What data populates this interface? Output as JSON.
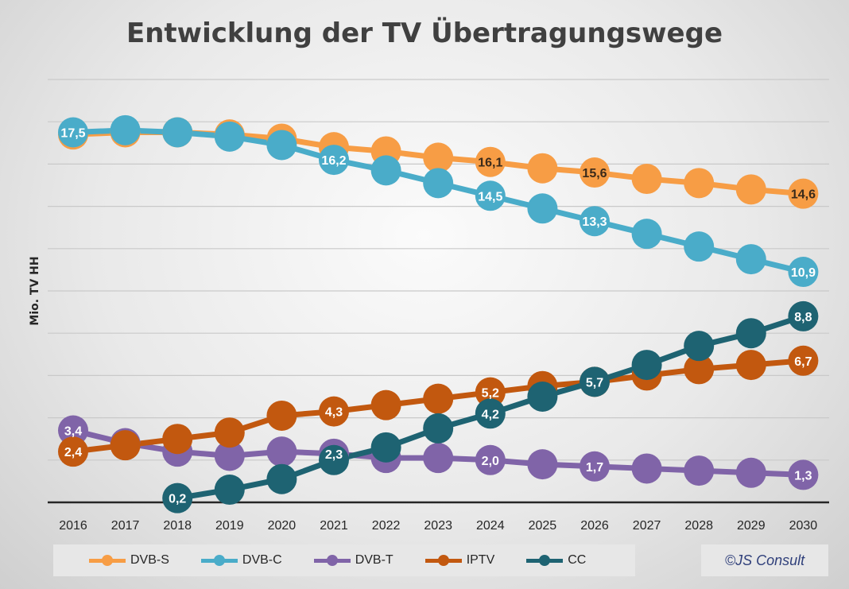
{
  "chart_data": {
    "type": "line",
    "title": "Entwicklung der TV Übertragungswege",
    "ylabel": "Mio. TV HH",
    "xlabel": "",
    "ylim": [
      0,
      20
    ],
    "grid": true,
    "legend_position": "bottom",
    "categories": [
      "2016",
      "2017",
      "2018",
      "2019",
      "2020",
      "2021",
      "2022",
      "2023",
      "2024",
      "2025",
      "2026",
      "2027",
      "2028",
      "2029",
      "2030"
    ],
    "series": [
      {
        "name": "DVB-S",
        "color": "#f79d45",
        "label_color": "#3a2a1a",
        "values": [
          17.4,
          17.5,
          17.5,
          17.4,
          17.2,
          16.8,
          16.6,
          16.3,
          16.1,
          15.8,
          15.6,
          15.3,
          15.1,
          14.8,
          14.6
        ],
        "labels": {
          "8": "16,1",
          "10": "15,6",
          "14": "14,6"
        }
      },
      {
        "name": "DVB-C",
        "color": "#4aacc9",
        "label_color": "#ffffff",
        "values": [
          17.5,
          17.6,
          17.5,
          17.3,
          16.9,
          16.2,
          15.7,
          15.1,
          14.5,
          13.9,
          13.3,
          12.7,
          12.1,
          11.5,
          10.9
        ],
        "labels": {
          "0": "17,5",
          "5": "16,2",
          "8": "14,5",
          "10": "13,3",
          "14": "10,9"
        }
      },
      {
        "name": "DVB-T",
        "color": "#8064a8",
        "label_color": "#ffffff",
        "values": [
          3.4,
          2.8,
          2.4,
          2.2,
          2.4,
          2.3,
          2.1,
          2.1,
          2.0,
          1.8,
          1.7,
          1.6,
          1.5,
          1.4,
          1.3
        ],
        "labels": {
          "0": "3,4",
          "5": "2,3",
          "8": "2,0",
          "10": "1,7",
          "14": "1,3"
        }
      },
      {
        "name": "IPTV",
        "color": "#c2580f",
        "label_color": "#ffffff",
        "values": [
          2.4,
          2.7,
          3.0,
          3.3,
          4.1,
          4.3,
          4.6,
          4.9,
          5.2,
          5.5,
          5.7,
          6.0,
          6.3,
          6.5,
          6.7
        ],
        "labels": {
          "0": "2,4",
          "5": "4,3",
          "8": "5,2",
          "14": "6,7"
        }
      },
      {
        "name": "CC",
        "color": "#1e6372",
        "label_color": "#ffffff",
        "values": [
          null,
          null,
          0.2,
          0.6,
          1.1,
          2.0,
          2.6,
          3.5,
          4.2,
          5.0,
          5.7,
          6.5,
          7.4,
          8.0,
          8.8
        ],
        "labels": {
          "2": "0,2",
          "8": "4,2",
          "10": "5,7",
          "14": "8,8"
        }
      }
    ]
  },
  "legend": {
    "items": [
      "DVB-S",
      "DVB-C",
      "DVB-T",
      "IPTV",
      "CC"
    ],
    "colors": [
      "#f79d45",
      "#4aacc9",
      "#8064a8",
      "#c2580f",
      "#1e6372"
    ]
  },
  "copyright": "©JS Consult"
}
